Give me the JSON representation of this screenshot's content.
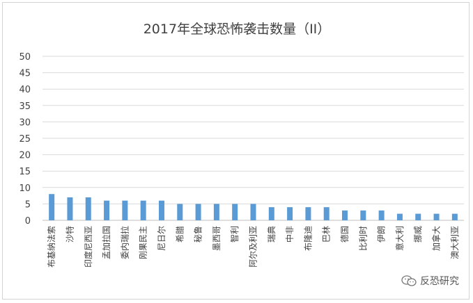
{
  "chart_data": {
    "type": "bar",
    "title": "2017年全球恐怖袭击数量（II）",
    "xlabel": "",
    "ylabel": "",
    "ylim": [
      0,
      50
    ],
    "yticks": [
      0,
      5,
      10,
      15,
      20,
      25,
      30,
      35,
      40,
      45,
      50
    ],
    "grid": true,
    "categories": [
      "布基纳法索",
      "沙特",
      "印度尼西亚",
      "孟加拉国",
      "委内瑞拉",
      "刚果民主",
      "尼日尔",
      "希腊",
      "秘鲁",
      "墨西哥",
      "智利",
      "阿尔及利亚",
      "瑞典",
      "中非",
      "布隆迪",
      "巴林",
      "德国",
      "比利时",
      "伊朗",
      "意大利",
      "挪威",
      "加拿大",
      "澳大利亚"
    ],
    "values": [
      8,
      7,
      7,
      6,
      6,
      6,
      6,
      5,
      5,
      5,
      5,
      5,
      4,
      4,
      4,
      4,
      3,
      3,
      3,
      2,
      2,
      2,
      2
    ],
    "bar_color": "#5b9bd5"
  },
  "watermark": {
    "text": "反恐研究",
    "icon": "wechat-icon"
  }
}
